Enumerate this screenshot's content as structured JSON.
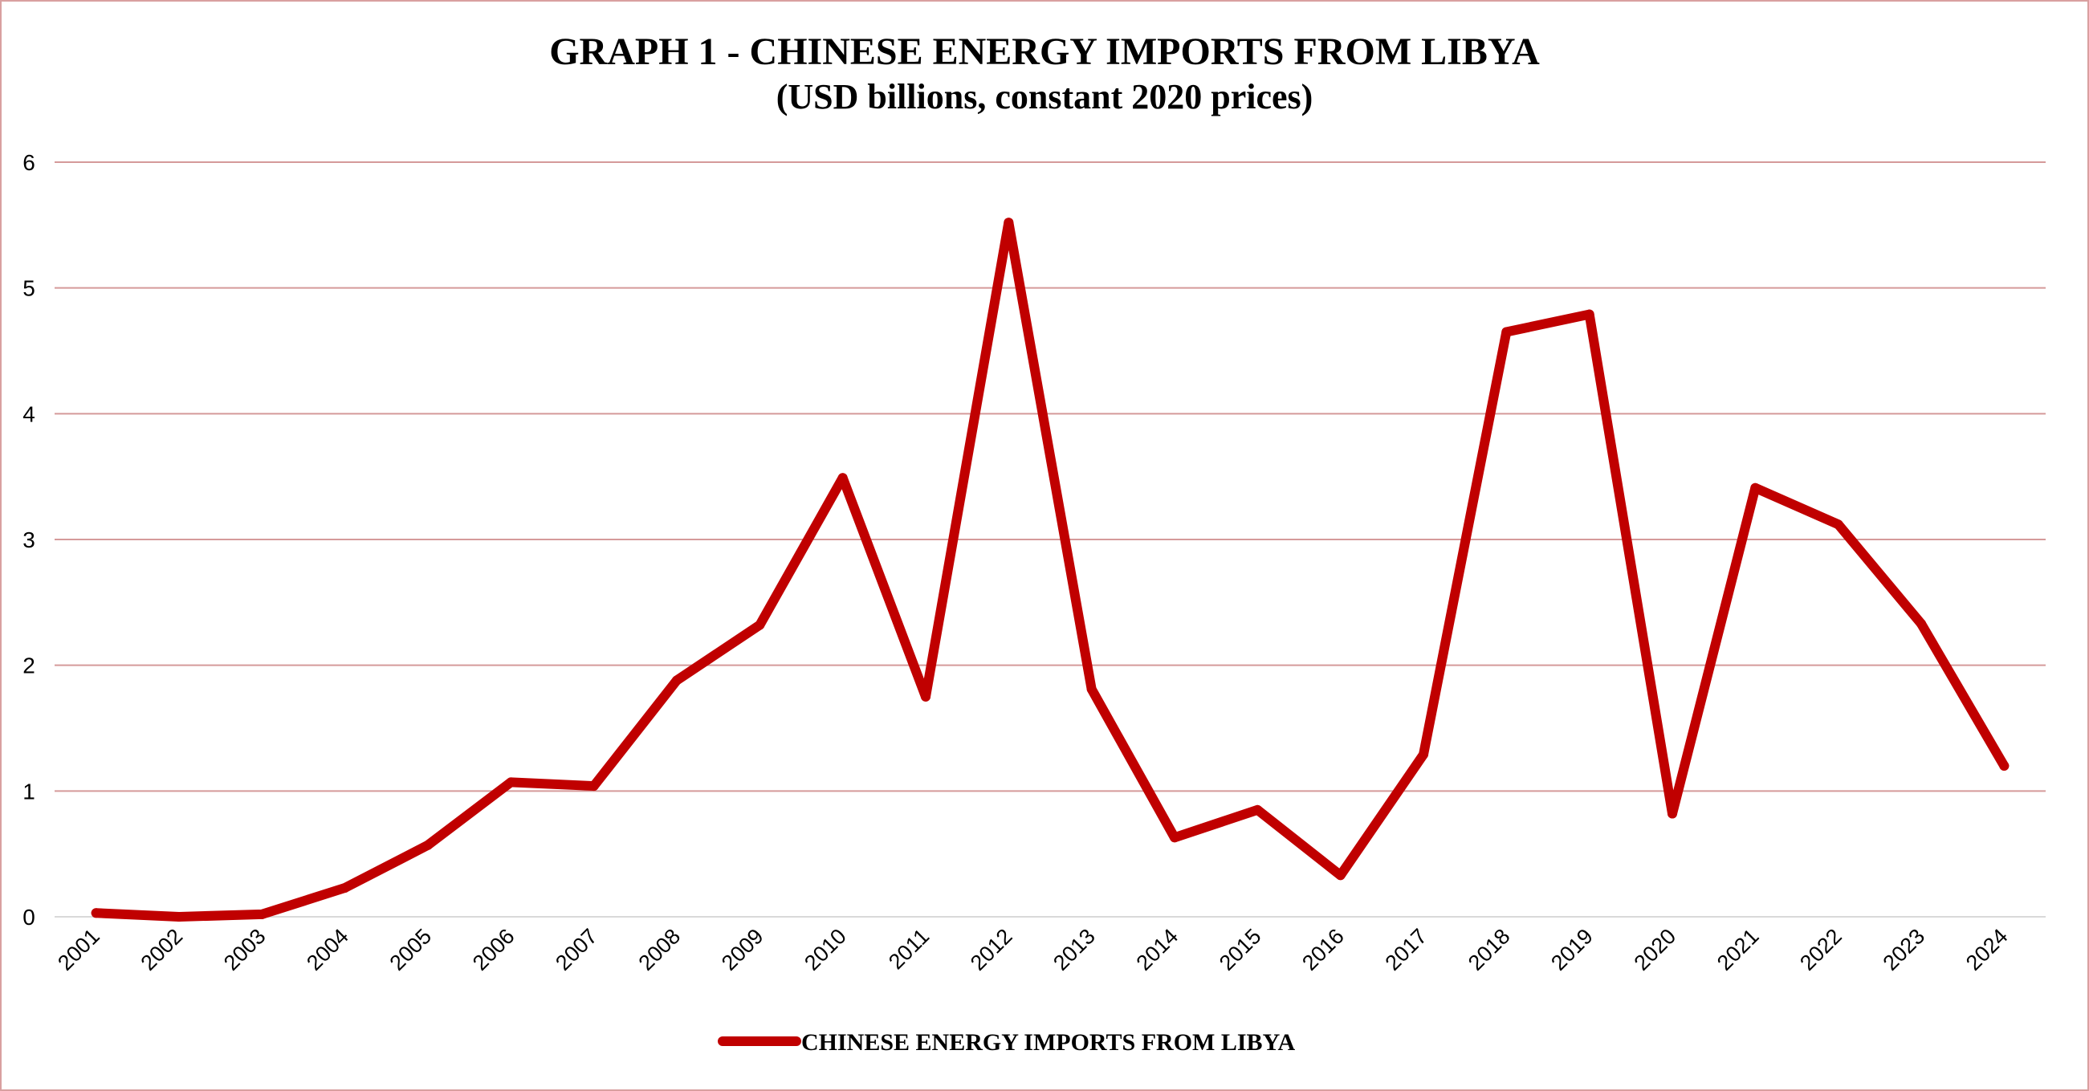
{
  "chart_data": {
    "type": "line",
    "title": "GRAPH 1 - CHINESE ENERGY IMPORTS FROM LIBYA",
    "subtitle": "(USD billions, constant 2020 prices)",
    "xlabel": "",
    "ylabel": "",
    "ylim": [
      0,
      6
    ],
    "yticks": [
      "0",
      "1",
      "2",
      "3",
      "4",
      "5",
      "6"
    ],
    "grid": true,
    "legend_position": "bottom",
    "categories": [
      "2001",
      "2002",
      "2003",
      "2004",
      "2005",
      "2006",
      "2007",
      "2008",
      "2009",
      "2010",
      "2011",
      "2012",
      "2013",
      "2014",
      "2015",
      "2016",
      "2017",
      "2018",
      "2019",
      "2020",
      "2021",
      "2022",
      "2023",
      "2024"
    ],
    "series": [
      {
        "name": "CHINESE ENERGY IMPORTS FROM LIBYA",
        "color": "#c00000",
        "values": [
          0.03,
          0.0,
          0.02,
          0.23,
          0.57,
          1.07,
          1.04,
          1.88,
          2.32,
          3.49,
          1.75,
          5.52,
          1.81,
          0.63,
          0.85,
          0.33,
          1.29,
          4.65,
          4.79,
          0.82,
          3.41,
          3.12,
          2.33,
          1.2
        ]
      }
    ]
  },
  "colors": {
    "line": "#c00000",
    "gridline": "#d59a9a",
    "frame": "#d9a0a0"
  }
}
